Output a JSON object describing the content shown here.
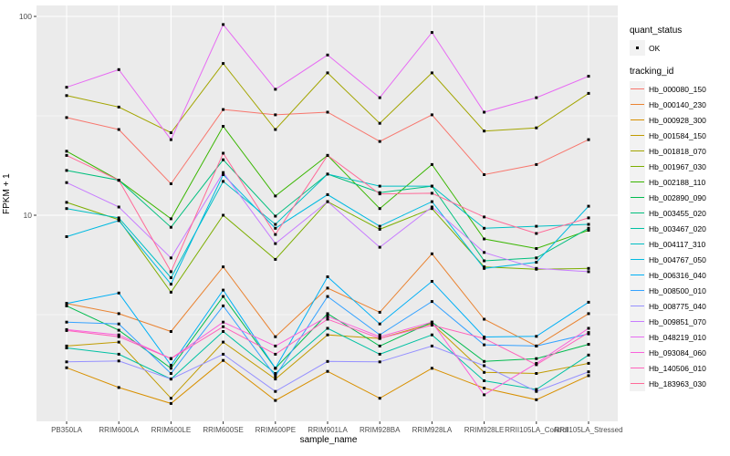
{
  "chart_data": {
    "type": "line",
    "title": "",
    "xlabel": "sample_name",
    "ylabel": "FPKM + 1",
    "y_scale": "log10",
    "ylim": [
      0.92,
      113
    ],
    "grid": true,
    "legend_position": "right",
    "y_ticks": [
      100,
      10
    ],
    "y_tick_labels": [
      "100",
      "10"
    ],
    "y_minor_ticks": [
      31.62,
      3.162
    ],
    "point_color": "#000000",
    "point_shape": "square",
    "panel_color": "#EBEBEB",
    "gridline_color": "#FFFFFF",
    "categories": [
      "PB350LA",
      "RRIM600LA",
      "RRIM600LE",
      "RRIM600SE",
      "RRIM600PE",
      "RRIM901LA",
      "RRIM928BA",
      "RRIM928LA",
      "RRIM928LE",
      "RRII105LA_Control",
      "RRII105LA_Stressed"
    ],
    "series": [
      {
        "name": "Hb_000080_150",
        "color": "#F8766D",
        "values": [
          31,
          27,
          14.4,
          34,
          32,
          33,
          23.5,
          32,
          16,
          18,
          24
        ]
      },
      {
        "name": "Hb_000140_230",
        "color": "#EA8331",
        "values": [
          3.6,
          3.2,
          2.6,
          5.5,
          2.45,
          4.3,
          3.25,
          6.4,
          3.0,
          2.2,
          3.2
        ]
      },
      {
        "name": "Hb_000928_300",
        "color": "#D89000",
        "values": [
          1.71,
          1.36,
          1.13,
          1.86,
          1.17,
          1.64,
          1.2,
          1.7,
          1.35,
          1.18,
          1.56
        ]
      },
      {
        "name": "Hb_001584_150",
        "color": "#C09B00",
        "values": [
          2.2,
          2.3,
          1.2,
          2.3,
          1.5,
          2.5,
          2.4,
          2.85,
          1.62,
          1.6,
          1.8
        ]
      },
      {
        "name": "Hb_001818_070",
        "color": "#A3A500",
        "values": [
          40,
          35,
          26,
          58,
          27,
          52,
          29,
          52,
          26.5,
          27.5,
          41
        ]
      },
      {
        "name": "Hb_001967_030",
        "color": "#7CAE00",
        "values": [
          11.6,
          9.5,
          4.1,
          10,
          6.0,
          11.7,
          8.5,
          10.8,
          5.5,
          5.35,
          5.4
        ]
      },
      {
        "name": "Hb_002188_110",
        "color": "#39B600",
        "values": [
          21,
          15,
          9.6,
          28,
          12.5,
          20,
          10.8,
          18,
          7.6,
          6.8,
          8.4
        ]
      },
      {
        "name": "Hb_002890_090",
        "color": "#00BB4E",
        "values": [
          3.5,
          2.64,
          1.7,
          3.9,
          1.7,
          3.2,
          2.2,
          2.9,
          1.84,
          1.9,
          2.24
        ]
      },
      {
        "name": "Hb_003455_020",
        "color": "#00BF7D",
        "values": [
          16.8,
          15,
          8.7,
          19,
          9.9,
          16.1,
          13,
          14,
          5.9,
          6.1,
          8.6
        ]
      },
      {
        "name": "Hb_003467_020",
        "color": "#00C1A3",
        "values": [
          2.15,
          2.0,
          1.5,
          2.6,
          1.6,
          2.7,
          2.0,
          2.5,
          1.47,
          1.33,
          1.98
        ]
      },
      {
        "name": "Hb_004117_310",
        "color": "#00BFC4",
        "values": [
          10.8,
          9.7,
          4.85,
          14.8,
          9.0,
          16.1,
          14,
          14,
          8.6,
          8.8,
          9.0
        ]
      },
      {
        "name": "Hb_004767_050",
        "color": "#00BAE0",
        "values": [
          7.8,
          9.4,
          4.5,
          16,
          8.6,
          12.7,
          8.8,
          11.7,
          5.4,
          5.8,
          11.1
        ]
      },
      {
        "name": "Hb_006316_040",
        "color": "#00B0F6",
        "values": [
          3.6,
          4.06,
          1.76,
          4.2,
          1.7,
          4.9,
          2.84,
          4.65,
          2.44,
          2.46,
          3.65
        ]
      },
      {
        "name": "Hb_008500_010",
        "color": "#35A2FF",
        "values": [
          2.9,
          2.84,
          1.6,
          3.5,
          1.55,
          3.9,
          2.5,
          3.68,
          2.23,
          2.2,
          2.53
        ]
      },
      {
        "name": "Hb_008775_040",
        "color": "#9590FF",
        "values": [
          1.83,
          1.85,
          1.5,
          2.0,
          1.3,
          1.84,
          1.83,
          2.2,
          1.75,
          1.3,
          1.63
        ]
      },
      {
        "name": "Hb_009851_070",
        "color": "#C77CFF",
        "values": [
          14.6,
          11,
          6.1,
          16.4,
          7.2,
          11.7,
          6.9,
          11,
          6.5,
          5.4,
          5.2
        ]
      },
      {
        "name": "Hb_048219_010",
        "color": "#E76BF3",
        "values": [
          44,
          54,
          24,
          91,
          43,
          64,
          39,
          83,
          33,
          39,
          50
        ]
      },
      {
        "name": "Hb_093084_060",
        "color": "#FA62DB",
        "values": [
          2.66,
          2.5,
          1.9,
          2.9,
          2.2,
          3.1,
          2.45,
          2.9,
          1.25,
          1.8,
          2.7
        ]
      },
      {
        "name": "Hb_140506_010",
        "color": "#FF62BC",
        "values": [
          2.63,
          2.45,
          1.9,
          2.75,
          2.0,
          3.0,
          2.4,
          2.8,
          2.4,
          1.77,
          2.57
        ]
      },
      {
        "name": "Hb_183963_030",
        "color": "#FF6A98",
        "values": [
          20,
          15,
          5.2,
          20.5,
          8.0,
          20,
          12.8,
          12.9,
          9.8,
          8.1,
          9.7
        ]
      }
    ]
  },
  "legend": {
    "quant_title": "quant_status",
    "quant_items": [
      {
        "label": "OK",
        "marker": "point-icon"
      }
    ],
    "tracking_title": "tracking_id"
  }
}
